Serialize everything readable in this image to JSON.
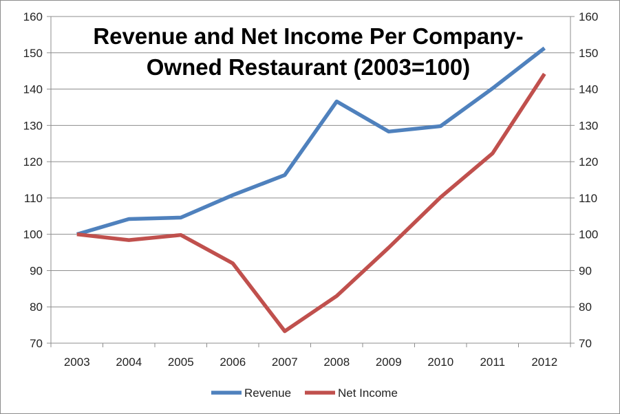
{
  "chart_data": {
    "type": "line",
    "title_lines": [
      "Revenue and Net Income Per Company-",
      "Owned Restaurant (2003=100)"
    ],
    "categories": [
      "2003",
      "2004",
      "2005",
      "2006",
      "2007",
      "2008",
      "2009",
      "2010",
      "2011",
      "2012"
    ],
    "series": [
      {
        "name": "Revenue",
        "color": "#4F81BD",
        "values": [
          100,
          104.2,
          104.6,
          110.8,
          116.3,
          136.6,
          128.3,
          129.8,
          140.2,
          151.3
        ]
      },
      {
        "name": "Net Income",
        "color": "#C0504D",
        "values": [
          100,
          98.4,
          99.8,
          92.0,
          73.3,
          83.0,
          96.3,
          110.2,
          122.3,
          144.2
        ]
      }
    ],
    "yticks_left": [
      "70",
      "80",
      "90",
      "100",
      "110",
      "120",
      "130",
      "140",
      "150",
      "160"
    ],
    "yticks_right": [
      "70",
      "80",
      "90",
      "100",
      "110",
      "120",
      "130",
      "140",
      "150",
      "160"
    ],
    "ylim": [
      70,
      160
    ],
    "grid": true,
    "legend_position": "bottom"
  }
}
